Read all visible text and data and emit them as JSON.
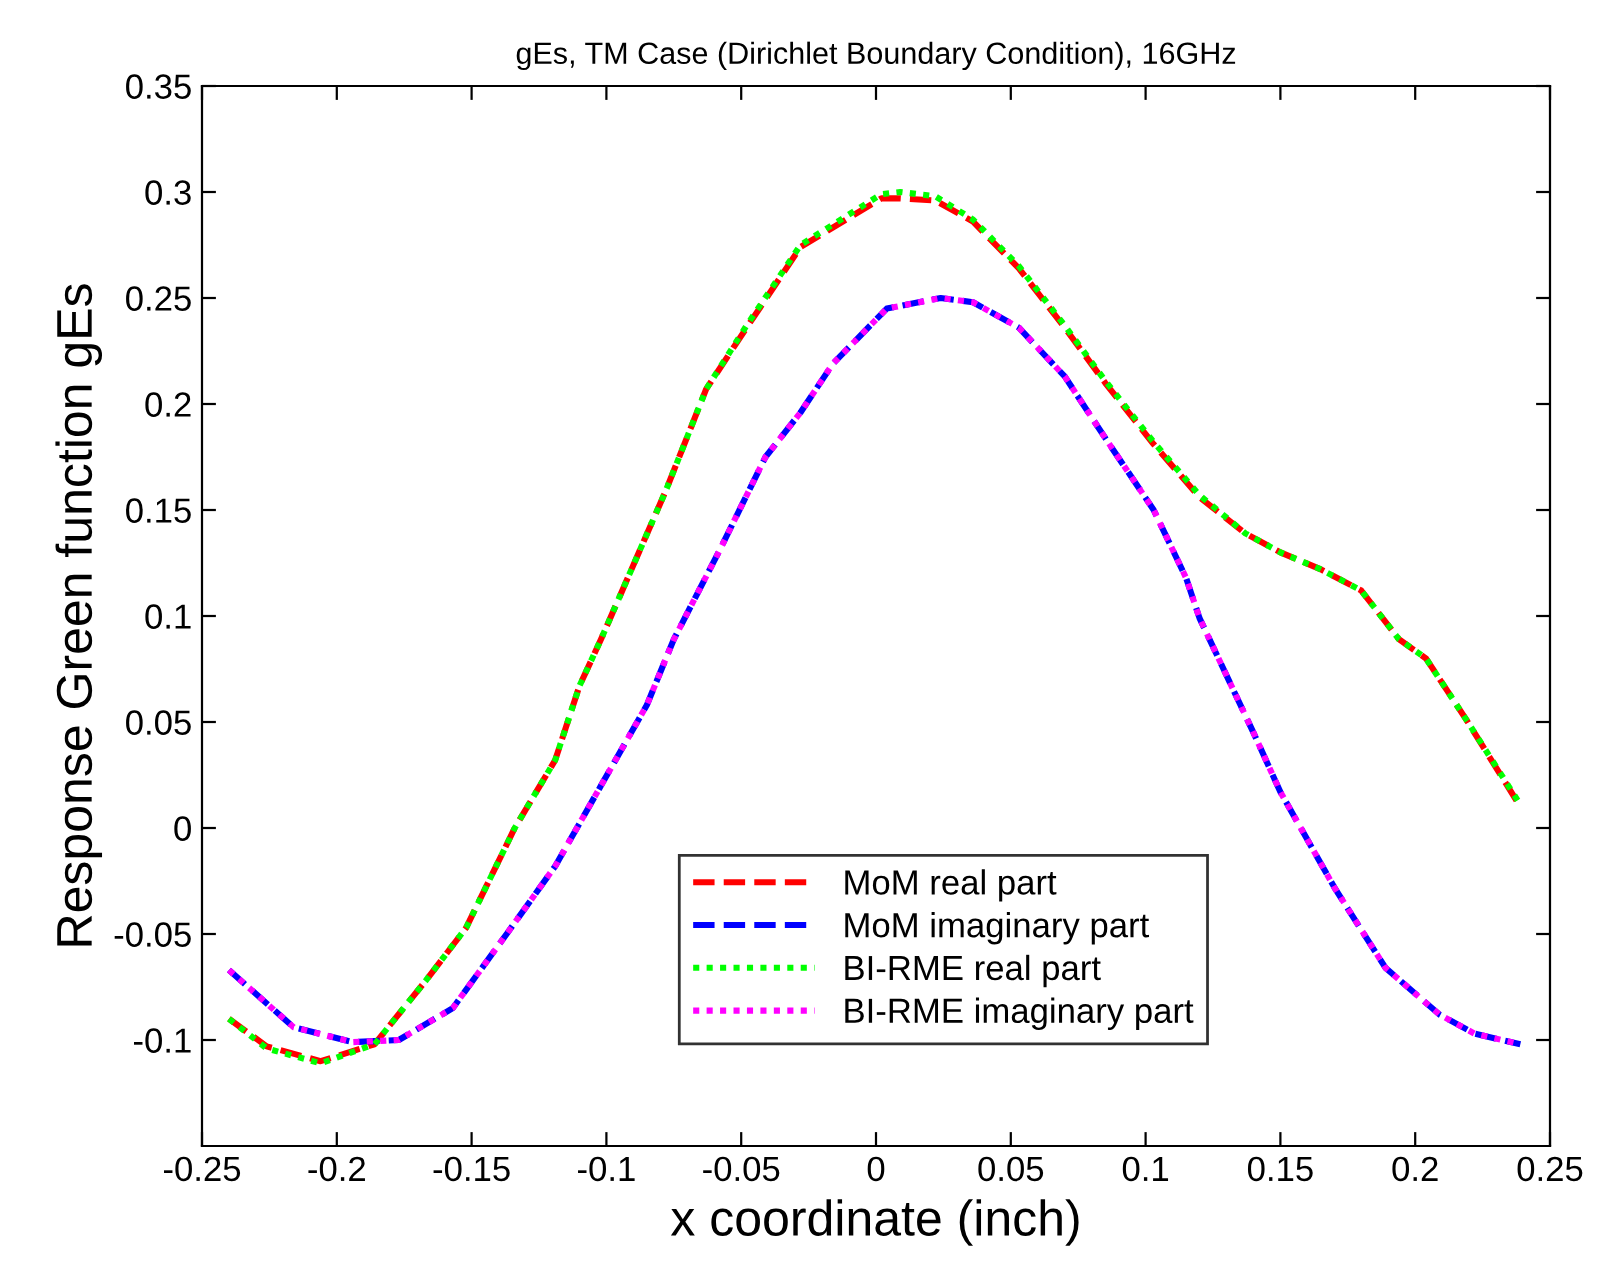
{
  "chart_data": {
    "type": "line",
    "title": "gEs, TM Case (Dirichlet Boundary Condition), 16GHz",
    "xlabel": "x coordinate (inch)",
    "ylabel": "Response Green function gEs",
    "xlim": [
      -0.25,
      0.25
    ],
    "xticks": [
      -0.25,
      -0.2,
      -0.15,
      -0.1,
      -0.05,
      0,
      0.05,
      0.1,
      0.15,
      0.2,
      0.25
    ],
    "ylim": [
      -0.15,
      0.35
    ],
    "yticks": [
      -0.1,
      -0.05,
      0,
      0.05,
      0.1,
      0.15,
      0.2,
      0.25,
      0.3,
      0.35
    ],
    "grid": false,
    "legend": "bottom",
    "marker": "none",
    "series": [
      {
        "name": "MoM real part",
        "color": "#ff0000",
        "line_style": "dashed",
        "x": [
          -0.24,
          -0.226,
          -0.206,
          -0.186,
          -0.167,
          -0.152,
          -0.134,
          -0.119,
          -0.11,
          -0.102,
          -0.078,
          -0.063,
          -0.048,
          -0.028,
          0.002,
          0.009,
          0.022,
          0.036,
          0.053,
          0.07,
          0.085,
          0.103,
          0.12,
          0.137,
          0.15,
          0.165,
          0.18,
          0.194,
          0.204,
          0.219,
          0.239
        ],
        "values": [
          -0.09,
          -0.103,
          -0.11,
          -0.102,
          -0.072,
          -0.047,
          0.0,
          0.032,
          0.067,
          0.089,
          0.159,
          0.207,
          0.236,
          0.274,
          0.297,
          0.297,
          0.296,
          0.286,
          0.264,
          0.236,
          0.21,
          0.181,
          0.156,
          0.139,
          0.13,
          0.122,
          0.112,
          0.089,
          0.08,
          0.051,
          0.01
        ]
      },
      {
        "name": "MoM imaginary part",
        "color": "#0000ff",
        "line_style": "dashed",
        "x": [
          -0.24,
          -0.216,
          -0.194,
          -0.177,
          -0.157,
          -0.137,
          -0.119,
          -0.102,
          -0.085,
          -0.075,
          -0.058,
          -0.041,
          -0.028,
          -0.016,
          0.004,
          0.024,
          0.036,
          0.053,
          0.07,
          0.085,
          0.103,
          0.115,
          0.12,
          0.14,
          0.15,
          0.17,
          0.189,
          0.209,
          0.222,
          0.239
        ],
        "values": [
          -0.067,
          -0.094,
          -0.101,
          -0.1,
          -0.085,
          -0.05,
          -0.018,
          0.02,
          0.058,
          0.089,
          0.131,
          0.175,
          0.196,
          0.219,
          0.245,
          0.25,
          0.248,
          0.236,
          0.213,
          0.184,
          0.15,
          0.118,
          0.099,
          0.045,
          0.017,
          -0.028,
          -0.066,
          -0.088,
          -0.097,
          -0.102
        ]
      },
      {
        "name": "BI-RME real part",
        "color": "#00ff00",
        "line_style": "dotted",
        "x": [
          -0.24,
          -0.226,
          -0.206,
          -0.186,
          -0.167,
          -0.152,
          -0.134,
          -0.119,
          -0.11,
          -0.102,
          -0.078,
          -0.063,
          -0.048,
          -0.028,
          0.002,
          0.009,
          0.022,
          0.036,
          0.053,
          0.07,
          0.085,
          0.103,
          0.12,
          0.137,
          0.15,
          0.165,
          0.18,
          0.194,
          0.204,
          0.219,
          0.239
        ],
        "values": [
          -0.09,
          -0.104,
          -0.111,
          -0.102,
          -0.072,
          -0.047,
          0.0,
          0.032,
          0.067,
          0.089,
          0.159,
          0.207,
          0.237,
          0.275,
          0.299,
          0.3,
          0.298,
          0.287,
          0.265,
          0.237,
          0.211,
          0.182,
          0.157,
          0.139,
          0.13,
          0.122,
          0.112,
          0.089,
          0.08,
          0.051,
          0.011
        ]
      },
      {
        "name": "BI-RME imaginary part",
        "color": "#ff00ff",
        "line_style": "dotted",
        "x": [
          -0.24,
          -0.216,
          -0.194,
          -0.177,
          -0.157,
          -0.137,
          -0.119,
          -0.102,
          -0.085,
          -0.075,
          -0.058,
          -0.041,
          -0.028,
          -0.016,
          0.004,
          0.024,
          0.036,
          0.053,
          0.07,
          0.085,
          0.103,
          0.115,
          0.12,
          0.14,
          0.15,
          0.17,
          0.189,
          0.209,
          0.222,
          0.239
        ],
        "values": [
          -0.067,
          -0.094,
          -0.101,
          -0.1,
          -0.085,
          -0.05,
          -0.018,
          0.02,
          0.058,
          0.089,
          0.131,
          0.175,
          0.196,
          0.219,
          0.245,
          0.25,
          0.248,
          0.236,
          0.213,
          0.184,
          0.15,
          0.118,
          0.099,
          0.045,
          0.017,
          -0.028,
          -0.066,
          -0.088,
          -0.097,
          -0.102
        ]
      }
    ]
  }
}
